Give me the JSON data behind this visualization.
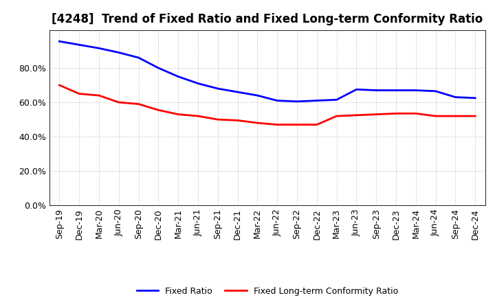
{
  "title": "[4248]  Trend of Fixed Ratio and Fixed Long-term Conformity Ratio",
  "x_labels": [
    "Sep-19",
    "Dec-19",
    "Mar-20",
    "Jun-20",
    "Sep-20",
    "Dec-20",
    "Mar-21",
    "Jun-21",
    "Sep-21",
    "Dec-21",
    "Mar-22",
    "Jun-22",
    "Sep-22",
    "Dec-22",
    "Mar-23",
    "Jun-23",
    "Sep-23",
    "Dec-23",
    "Mar-24",
    "Jun-24",
    "Sep-24",
    "Dec-24"
  ],
  "fixed_ratio": [
    0.955,
    0.935,
    0.915,
    0.89,
    0.86,
    0.8,
    0.75,
    0.71,
    0.68,
    0.66,
    0.64,
    0.61,
    0.605,
    0.61,
    0.615,
    0.675,
    0.67,
    0.67,
    0.67,
    0.665,
    0.63,
    0.625
  ],
  "fixed_lt_ratio": [
    0.7,
    0.65,
    0.64,
    0.6,
    0.59,
    0.555,
    0.53,
    0.52,
    0.5,
    0.495,
    0.48,
    0.47,
    0.47,
    0.47,
    0.52,
    0.525,
    0.53,
    0.535,
    0.535,
    0.52,
    0.52,
    0.52
  ],
  "fixed_ratio_color": "#0000FF",
  "fixed_lt_ratio_color": "#FF0000",
  "background_color": "#FFFFFF",
  "plot_bg_color": "#FFFFFF",
  "grid_color": "#AAAAAA",
  "ylim": [
    0.0,
    1.02
  ],
  "yticks": [
    0.0,
    0.2,
    0.4,
    0.6,
    0.8
  ],
  "legend_fixed": "Fixed Ratio",
  "legend_lt": "Fixed Long-term Conformity Ratio",
  "line_width": 2.0,
  "title_fontsize": 12,
  "tick_fontsize": 9
}
